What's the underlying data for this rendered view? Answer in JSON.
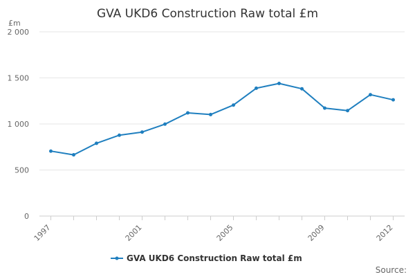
{
  "chart_data": {
    "type": "line",
    "title": "GVA UKD6 Construction Raw total £m",
    "ylabel": "£m",
    "xlabel": "",
    "ylim": [
      0,
      2000
    ],
    "y_ticks": [
      {
        "value": 0,
        "label": "0"
      },
      {
        "value": 500,
        "label": "500"
      },
      {
        "value": 1000,
        "label": "1 000"
      },
      {
        "value": 1500,
        "label": "1 500"
      },
      {
        "value": 2000,
        "label": "2 000"
      }
    ],
    "x_tick_labels": [
      "1997",
      "2001",
      "2005",
      "2009",
      "2012"
    ],
    "grid": true,
    "legend": "bottom",
    "series": [
      {
        "name": "GVA UKD6 Construction Raw total £m",
        "color": "#1f7fbf",
        "x": [
          1997,
          1998,
          1999,
          2000,
          2001,
          2002,
          2003,
          2004,
          2005,
          2006,
          2007,
          2008,
          2009,
          2010,
          2011,
          2012
        ],
        "values": [
          705,
          665,
          790,
          878,
          912,
          998,
          1120,
          1102,
          1205,
          1388,
          1440,
          1382,
          1172,
          1145,
          1318,
          1262
        ]
      }
    ]
  },
  "source_label": "Source:"
}
